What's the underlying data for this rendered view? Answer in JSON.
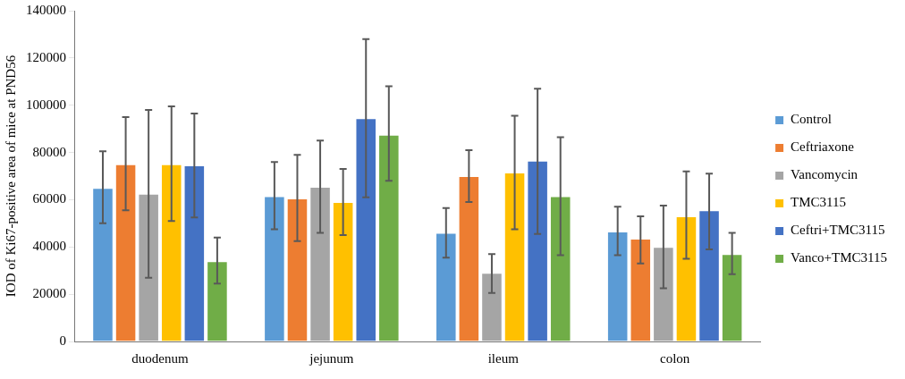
{
  "chart_data": {
    "type": "bar",
    "ylabel": "IOD of Ki67-positive area of mice at PND56",
    "categories": [
      "duodenum",
      "jejunum",
      "ileum",
      "colon"
    ],
    "ylim": [
      0,
      140000
    ],
    "yticks": [
      0,
      20000,
      40000,
      60000,
      80000,
      100000,
      120000,
      140000
    ],
    "grid": false,
    "legend": "right",
    "series": [
      {
        "name": "Control",
        "color": "#5b9bd5",
        "values": [
          65000,
          61500,
          46000,
          46500
        ],
        "errors": [
          [
            50000,
            80500
          ],
          [
            47500,
            76000
          ],
          [
            35500,
            56500
          ],
          [
            36500,
            57000
          ]
        ]
      },
      {
        "name": "Ceftriaxone",
        "color": "#ed7d31",
        "values": [
          75000,
          60500,
          70000,
          43500
        ],
        "errors": [
          [
            55500,
            95000
          ],
          [
            42500,
            79000
          ],
          [
            59000,
            81000
          ],
          [
            33000,
            53000
          ]
        ]
      },
      {
        "name": "Vancomycin",
        "color": "#a5a5a5",
        "values": [
          62500,
          65500,
          29000,
          40000
        ],
        "errors": [
          [
            27000,
            98000
          ],
          [
            46000,
            85000
          ],
          [
            20500,
            37000
          ],
          [
            22500,
            57500
          ]
        ]
      },
      {
        "name": "TMC3115",
        "color": "#ffc000",
        "values": [
          75000,
          59000,
          71500,
          53000
        ],
        "errors": [
          [
            51000,
            99500
          ],
          [
            45000,
            73000
          ],
          [
            47500,
            95500
          ],
          [
            35000,
            72000
          ]
        ]
      },
      {
        "name": "Ceftri+TMC3115",
        "color": "#4472c4",
        "values": [
          74500,
          94500,
          76500,
          55500
        ],
        "errors": [
          [
            52500,
            96500
          ],
          [
            61000,
            128000
          ],
          [
            45500,
            107000
          ],
          [
            39000,
            71000
          ]
        ]
      },
      {
        "name": "Vanco+TMC3115",
        "color": "#70ad47",
        "values": [
          34000,
          87500,
          61500,
          37000
        ],
        "errors": [
          [
            24500,
            44000
          ],
          [
            68000,
            108000
          ],
          [
            36500,
            86500
          ],
          [
            28500,
            46000
          ]
        ]
      }
    ]
  }
}
